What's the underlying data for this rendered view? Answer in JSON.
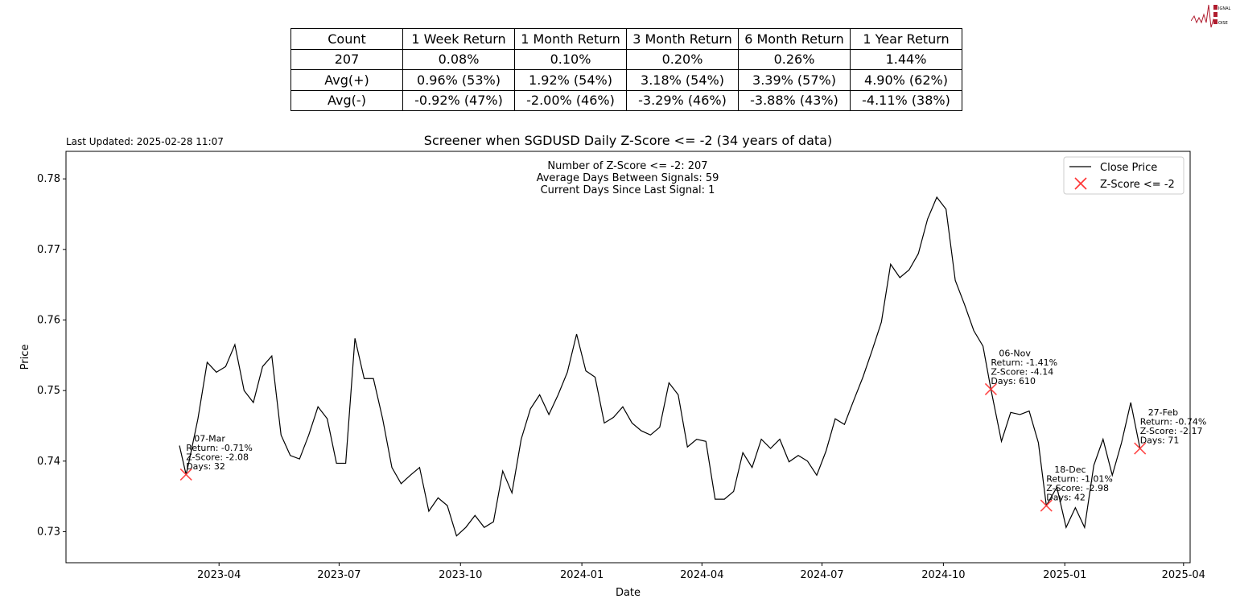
{
  "logo": {
    "text": [
      "SIGNAL",
      "2",
      "NOISE"
    ],
    "color": "#b01c2e"
  },
  "stats_table": {
    "header": [
      "Count",
      "1 Week Return",
      "1 Month Return",
      "3 Month Return",
      "6 Month Return",
      "1 Year Return"
    ],
    "rows": [
      [
        "207",
        "0.08%",
        "0.10%",
        "0.20%",
        "0.26%",
        "1.44%"
      ],
      [
        "Avg(+)",
        "0.96% (53%)",
        "1.92% (54%)",
        "3.18% (54%)",
        "3.39% (57%)",
        "4.90% (62%)"
      ],
      [
        "Avg(-)",
        "-0.92% (47%)",
        "-2.00% (46%)",
        "-3.29% (46%)",
        "-3.88% (43%)",
        "-4.11% (38%)"
      ]
    ]
  },
  "last_updated": "Last Updated: 2025-02-28 11:07",
  "chart_data": {
    "type": "line",
    "title": "Screener when SGDUSD Daily Z-Score <= -2 (34 years of data)",
    "xlabel": "Date",
    "ylabel": "Price",
    "xlim": [
      "2022-12-06",
      "2025-04-06"
    ],
    "ylim": [
      0.7256,
      0.7839
    ],
    "yticks": [
      0.73,
      0.74,
      0.75,
      0.76,
      0.77,
      0.78
    ],
    "xticks": [
      "2023-04",
      "2023-07",
      "2023-10",
      "2024-01",
      "2024-04",
      "2024-07",
      "2024-10",
      "2025-01",
      "2025-04"
    ],
    "grid": false,
    "legend": {
      "placement": "top-right",
      "entries": [
        "Close Price",
        "Z-Score <= -2"
      ]
    },
    "info_text": [
      "Number of Z-Score <= -2: 207",
      "Average Days Between Signals: 59",
      "Current Days Since Last Signal: 1"
    ],
    "colors": {
      "line": "#000000",
      "marker": "#ff3333"
    },
    "series": [
      {
        "name": "Close Price",
        "points": [
          [
            "2023-03-02",
            0.7422
          ],
          [
            "2023-03-07",
            0.7381
          ],
          [
            "2023-03-09",
            0.7397
          ],
          [
            "2023-03-16",
            0.746
          ],
          [
            "2023-03-23",
            0.754
          ],
          [
            "2023-03-30",
            0.7526
          ],
          [
            "2023-04-06",
            0.7534
          ],
          [
            "2023-04-13",
            0.7565
          ],
          [
            "2023-04-20",
            0.75
          ],
          [
            "2023-04-27",
            0.7483
          ],
          [
            "2023-05-04",
            0.7534
          ],
          [
            "2023-05-11",
            0.7549
          ],
          [
            "2023-05-18",
            0.7437
          ],
          [
            "2023-05-25",
            0.7408
          ],
          [
            "2023-06-01",
            0.7403
          ],
          [
            "2023-06-08",
            0.7437
          ],
          [
            "2023-06-15",
            0.7477
          ],
          [
            "2023-06-22",
            0.746
          ],
          [
            "2023-06-29",
            0.7397
          ],
          [
            "2023-07-06",
            0.7397
          ],
          [
            "2023-07-13",
            0.7574
          ],
          [
            "2023-07-20",
            0.7517
          ],
          [
            "2023-07-27",
            0.7517
          ],
          [
            "2023-08-03",
            0.746
          ],
          [
            "2023-08-10",
            0.7391
          ],
          [
            "2023-08-17",
            0.7368
          ],
          [
            "2023-08-24",
            0.738
          ],
          [
            "2023-08-31",
            0.7391
          ],
          [
            "2023-09-07",
            0.7329
          ],
          [
            "2023-09-14",
            0.7348
          ],
          [
            "2023-09-21",
            0.7337
          ],
          [
            "2023-09-28",
            0.7294
          ],
          [
            "2023-10-05",
            0.7306
          ],
          [
            "2023-10-12",
            0.7323
          ],
          [
            "2023-10-19",
            0.7306
          ],
          [
            "2023-10-26",
            0.7314
          ],
          [
            "2023-11-02",
            0.7386
          ],
          [
            "2023-11-09",
            0.7355
          ],
          [
            "2023-11-16",
            0.7431
          ],
          [
            "2023-11-23",
            0.7474
          ],
          [
            "2023-11-30",
            0.7494
          ],
          [
            "2023-12-07",
            0.7466
          ],
          [
            "2023-12-14",
            0.7494
          ],
          [
            "2023-12-21",
            0.7526
          ],
          [
            "2023-12-28",
            0.758
          ],
          [
            "2024-01-04",
            0.7528
          ],
          [
            "2024-01-11",
            0.7519
          ],
          [
            "2024-01-18",
            0.7454
          ],
          [
            "2024-01-25",
            0.7462
          ],
          [
            "2024-02-01",
            0.7477
          ],
          [
            "2024-02-08",
            0.7454
          ],
          [
            "2024-02-15",
            0.7443
          ],
          [
            "2024-02-22",
            0.7437
          ],
          [
            "2024-02-29",
            0.7448
          ],
          [
            "2024-03-07",
            0.7511
          ],
          [
            "2024-03-14",
            0.7494
          ],
          [
            "2024-03-21",
            0.742
          ],
          [
            "2024-03-28",
            0.7431
          ],
          [
            "2024-04-04",
            0.7428
          ],
          [
            "2024-04-11",
            0.7346
          ],
          [
            "2024-04-18",
            0.7346
          ],
          [
            "2024-04-25",
            0.7357
          ],
          [
            "2024-05-02",
            0.7412
          ],
          [
            "2024-05-09",
            0.7391
          ],
          [
            "2024-05-16",
            0.7431
          ],
          [
            "2024-05-23",
            0.7418
          ],
          [
            "2024-05-30",
            0.7431
          ],
          [
            "2024-06-06",
            0.7399
          ],
          [
            "2024-06-13",
            0.7408
          ],
          [
            "2024-06-20",
            0.74
          ],
          [
            "2024-06-27",
            0.738
          ],
          [
            "2024-07-04",
            0.7414
          ],
          [
            "2024-07-11",
            0.746
          ],
          [
            "2024-07-18",
            0.7452
          ],
          [
            "2024-07-25",
            0.7486
          ],
          [
            "2024-08-01",
            0.7519
          ],
          [
            "2024-08-08",
            0.7557
          ],
          [
            "2024-08-15",
            0.7597
          ],
          [
            "2024-08-22",
            0.7679
          ],
          [
            "2024-08-29",
            0.766
          ],
          [
            "2024-09-05",
            0.7671
          ],
          [
            "2024-09-12",
            0.7694
          ],
          [
            "2024-09-19",
            0.7743
          ],
          [
            "2024-09-26",
            0.7774
          ],
          [
            "2024-10-03",
            0.7757
          ],
          [
            "2024-10-10",
            0.7656
          ],
          [
            "2024-10-17",
            0.7622
          ],
          [
            "2024-10-24",
            0.7585
          ],
          [
            "2024-10-31",
            0.7563
          ],
          [
            "2024-11-06",
            0.7502
          ],
          [
            "2024-11-14",
            0.7428
          ],
          [
            "2024-11-21",
            0.7469
          ],
          [
            "2024-11-28",
            0.7466
          ],
          [
            "2024-12-05",
            0.7471
          ],
          [
            "2024-12-12",
            0.7426
          ],
          [
            "2024-12-18",
            0.7337
          ],
          [
            "2024-12-26",
            0.7363
          ],
          [
            "2025-01-02",
            0.7306
          ],
          [
            "2025-01-09",
            0.7334
          ],
          [
            "2025-01-16",
            0.7306
          ],
          [
            "2025-01-23",
            0.7394
          ],
          [
            "2025-01-30",
            0.7431
          ],
          [
            "2025-02-06",
            0.738
          ],
          [
            "2025-02-13",
            0.7426
          ],
          [
            "2025-02-20",
            0.7483
          ],
          [
            "2025-02-27",
            0.7418
          ]
        ]
      },
      {
        "name": "Z-Score <= -2",
        "type": "scatter",
        "points": [
          [
            "2023-03-07",
            0.7381
          ],
          [
            "2024-11-06",
            0.7502
          ],
          [
            "2024-12-18",
            0.7337
          ],
          [
            "2025-02-27",
            0.7418
          ]
        ]
      }
    ],
    "annotations": [
      {
        "date": "2023-03-07",
        "price": 0.7381,
        "lines": [
          "07-Mar",
          "Return: -0.71%",
          "Z-Score: -2.08",
          "Days: 32"
        ]
      },
      {
        "date": "2024-11-06",
        "price": 0.7502,
        "lines": [
          "06-Nov",
          "Return: -1.41%",
          "Z-Score: -4.14",
          "Days: 610"
        ]
      },
      {
        "date": "2024-12-18",
        "price": 0.7337,
        "lines": [
          "18-Dec",
          "Return: -1.01%",
          "Z-Score: -2.98",
          "Days: 42"
        ]
      },
      {
        "date": "2025-02-27",
        "price": 0.7418,
        "lines": [
          "27-Feb",
          "Return: -0.74%",
          "Z-Score: -2.17",
          "Days: 71"
        ]
      }
    ]
  }
}
